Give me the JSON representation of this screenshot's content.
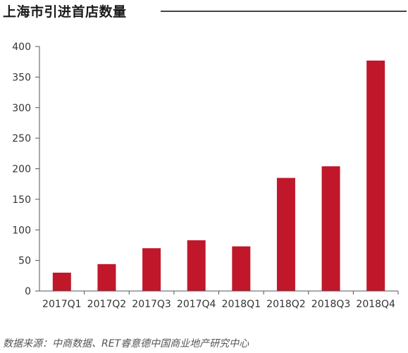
{
  "header": {
    "title": "上海市引进首店数量"
  },
  "chart_data": {
    "type": "bar",
    "title": "上海市引进首店数量",
    "categories": [
      "2017Q1",
      "2017Q2",
      "2017Q3",
      "2017Q4",
      "2018Q1",
      "2018Q2",
      "2018Q3",
      "2018Q4"
    ],
    "values": [
      30,
      44,
      70,
      83,
      73,
      185,
      204,
      377
    ],
    "yticks": [
      "0",
      "50",
      "100",
      "150",
      "200",
      "250",
      "300",
      "350",
      "400"
    ],
    "ylim": [
      0,
      400
    ],
    "xlabel": "",
    "ylabel": "",
    "grid": false,
    "legend": "none",
    "bar_color": "#c0182a"
  },
  "footer": {
    "source": "数据来源：中商数据、RET睿意德中国商业地产研究中心"
  }
}
